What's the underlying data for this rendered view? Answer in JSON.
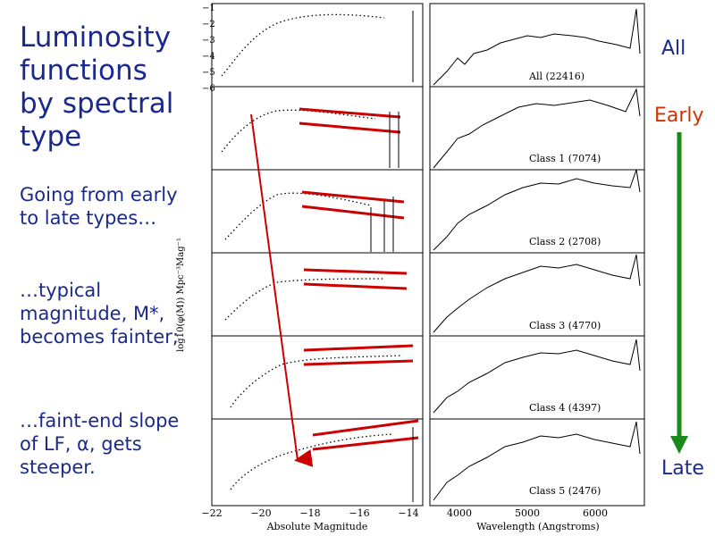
{
  "slide": {
    "title": "Luminosity functions by spectral type",
    "para1": "Going from early to late types…",
    "para2": "…typical magnitude, M*, becomes fainter;",
    "para3": "…faint-end slope of LF, α, gets steeper.",
    "label_all": "All",
    "label_early": "Early",
    "label_late": "Late"
  },
  "figure": {
    "xlabel_left": "Absolute Magnitude",
    "xlabel_right": "Wavelength (Angstroms)",
    "ylabel": "log10(φ(M)) Mpc⁻³Mag⁻¹",
    "x_ticks_left": [
      "−22",
      "−20",
      "−18",
      "−16",
      "−14"
    ],
    "x_ticks_right": [
      "4000",
      "5000",
      "6000"
    ],
    "y_ticks": [
      "−1",
      "−2",
      "−3",
      "−4",
      "−5",
      "−6"
    ],
    "panels": [
      {
        "label": "All (22416)"
      },
      {
        "label": "Class 1 (7074)"
      },
      {
        "label": "Class 2 (2708)"
      },
      {
        "label": "Class 3 (4770)"
      },
      {
        "label": "Class 4 (4397)"
      },
      {
        "label": "Class 5 (2476)"
      }
    ]
  },
  "colors": {
    "text": "#1a2a8c",
    "early": "#cc3300",
    "arrow_green": "#1a8a1a",
    "lines_red": "#cc0000"
  }
}
